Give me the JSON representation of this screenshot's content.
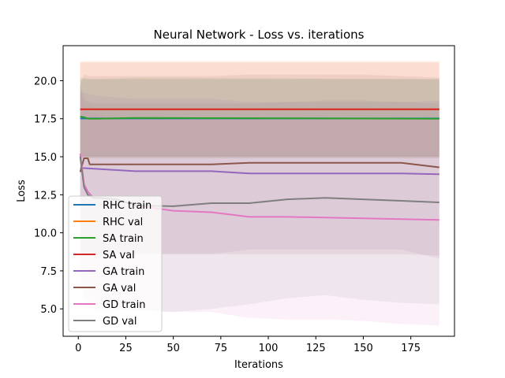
{
  "chart_data": {
    "type": "line",
    "title": "Neural Network - Loss vs. iterations",
    "xlabel": "Iterations",
    "ylabel": "Loss",
    "xlim": [
      -8,
      198
    ],
    "ylim": [
      3.2,
      22.3
    ],
    "xticks": [
      0,
      25,
      50,
      75,
      100,
      125,
      150,
      175
    ],
    "yticks": [
      5.0,
      7.5,
      10.0,
      12.5,
      15.0,
      17.5,
      20.0
    ],
    "ytick_labels": [
      "5.0",
      "7.5",
      "10.0",
      "12.5",
      "15.0",
      "17.5",
      "20.0"
    ],
    "grid": false,
    "legend_position": "lower-left",
    "series": [
      {
        "name": "RHC train",
        "color": "#1f77b4",
        "x": [
          1,
          190
        ],
        "y": [
          17.52,
          17.52
        ],
        "band_lower": [
          14.9,
          14.9
        ],
        "band_upper": [
          20.1,
          20.1
        ]
      },
      {
        "name": "RHC val",
        "color": "#ff7f0e",
        "x": [
          1,
          190
        ],
        "y": [
          18.12,
          18.12
        ],
        "band_lower": [
          14.9,
          14.9
        ],
        "band_upper": [
          21.3,
          21.3
        ]
      },
      {
        "name": "SA train",
        "color": "#2ca02c",
        "x": [
          1,
          3,
          5,
          10,
          30,
          190
        ],
        "y": [
          17.65,
          17.6,
          17.5,
          17.5,
          17.55,
          17.5
        ],
        "band_lower": [
          15.0,
          15.0,
          15.0,
          15.0,
          15.0,
          15.0
        ],
        "band_upper": [
          20.2,
          20.2,
          20.1,
          20.1,
          20.2,
          20.1
        ]
      },
      {
        "name": "SA val",
        "color": "#d62728",
        "x": [
          1,
          190
        ],
        "y": [
          18.12,
          18.12
        ],
        "band_lower": [
          15.0,
          15.0
        ],
        "band_upper": [
          21.2,
          21.2
        ]
      },
      {
        "name": "GA train",
        "color": "#9467bd",
        "x": [
          1,
          3,
          10,
          30,
          50,
          70,
          90,
          110,
          130,
          150,
          170,
          190
        ],
        "y": [
          14.25,
          14.25,
          14.2,
          14.05,
          14.05,
          14.05,
          13.9,
          13.9,
          13.9,
          13.9,
          13.9,
          13.85
        ],
        "band_lower": [
          8.5,
          8.5,
          8.6,
          8.6,
          8.6,
          8.6,
          8.9,
          8.9,
          8.9,
          8.9,
          8.9,
          8.3
        ],
        "band_upper": [
          19.3,
          19.2,
          19.0,
          18.8,
          18.8,
          18.8,
          18.6,
          18.6,
          18.6,
          18.6,
          18.6,
          18.7
        ]
      },
      {
        "name": "GA val",
        "color": "#8c564b",
        "x": [
          1,
          3,
          5,
          6,
          10,
          30,
          50,
          70,
          90,
          110,
          130,
          150,
          170,
          190
        ],
        "y": [
          14.0,
          14.9,
          14.9,
          14.5,
          14.5,
          14.5,
          14.5,
          14.5,
          14.6,
          14.6,
          14.6,
          14.6,
          14.6,
          14.3
        ],
        "band_lower": [
          8.5,
          8.5,
          8.6,
          8.6,
          8.6,
          8.6,
          8.6,
          8.6,
          8.6,
          8.6,
          8.6,
          8.6,
          8.6,
          8.5
        ],
        "band_upper": [
          19.7,
          20.4,
          20.3,
          20.3,
          20.3,
          20.3,
          20.3,
          20.3,
          20.4,
          20.4,
          20.4,
          20.4,
          20.3,
          20.2
        ]
      },
      {
        "name": "GD train",
        "color": "#e377c2",
        "x": [
          1,
          2,
          3,
          5,
          8,
          10,
          20,
          30,
          50,
          70,
          90,
          110,
          130,
          150,
          170,
          190
        ],
        "y": [
          15.2,
          14.2,
          13.2,
          12.7,
          12.3,
          12.3,
          12.2,
          11.8,
          11.45,
          11.35,
          11.05,
          11.05,
          11.0,
          10.95,
          10.9,
          10.85
        ],
        "band_lower": [
          6.5,
          5.8,
          5.3,
          5.1,
          4.9,
          4.9,
          4.9,
          4.9,
          4.8,
          4.8,
          4.4,
          4.3,
          4.3,
          4.2,
          4.0,
          3.9
        ],
        "band_upper": [
          19.0,
          18.8,
          18.5,
          18.0,
          17.8,
          17.8,
          17.5,
          17.5,
          17.5,
          17.5,
          17.5,
          17.5,
          17.5,
          17.5,
          17.5,
          17.5
        ]
      },
      {
        "name": "GD val",
        "color": "#7f7f7f",
        "x": [
          1,
          2,
          3,
          5,
          8,
          10,
          20,
          30,
          50,
          70,
          90,
          110,
          130,
          150,
          170,
          190
        ],
        "y": [
          15.0,
          14.0,
          13.0,
          12.5,
          12.3,
          12.3,
          12.2,
          11.8,
          11.75,
          11.95,
          11.95,
          12.2,
          12.3,
          12.2,
          12.1,
          12.0
        ],
        "band_lower": [
          7.5,
          6.5,
          5.9,
          5.6,
          5.4,
          5.3,
          5.0,
          4.9,
          4.8,
          5.0,
          5.3,
          5.7,
          5.9,
          5.6,
          5.4,
          5.3
        ],
        "band_upper": [
          19.8,
          19.3,
          18.8,
          18.6,
          18.5,
          18.5,
          18.5,
          18.5,
          18.5,
          18.5,
          18.5,
          18.6,
          18.7,
          18.7,
          18.6,
          18.5
        ]
      }
    ]
  }
}
